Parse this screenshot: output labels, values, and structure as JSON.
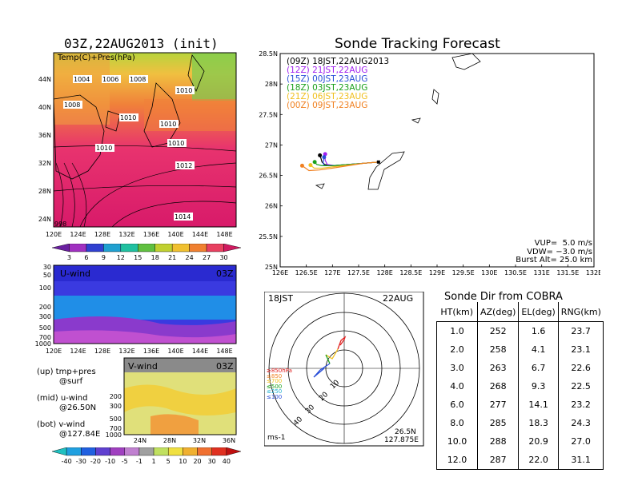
{
  "left_panel": {
    "title": "03Z,22AUG2013 (init)",
    "map_label": "Temp(C)+Pres(hPa)",
    "lat_ticks": [
      "44N",
      "40N",
      "36N",
      "32N",
      "28N",
      "24N"
    ],
    "lon_ticks": [
      "120E",
      "124E",
      "128E",
      "132E",
      "136E",
      "140E",
      "144E",
      "148E"
    ],
    "isobar_labels": [
      "1004",
      "1006",
      "1008",
      "1008",
      "1010",
      "1010",
      "1010",
      "1010",
      "1010",
      "1012",
      "1014"
    ],
    "corner_label": "998",
    "temp_colorbar": [
      "3",
      "6",
      "9",
      "12",
      "15",
      "18",
      "21",
      "24",
      "27",
      "30"
    ],
    "uwind": {
      "label": "U-wind",
      "time": "03Z",
      "p_ticks": [
        "30",
        "50",
        "100",
        "200",
        "300",
        "500",
        "700",
        "1000"
      ]
    },
    "vwind": {
      "label": "V-wind",
      "time": "03Z",
      "p_ticks": [
        "200",
        "300",
        "500",
        "700",
        "1000"
      ],
      "lat_ticks": [
        "24N",
        "28N",
        "32N",
        "36N"
      ]
    },
    "wind_colorbar": [
      "-40",
      "-30",
      "-20",
      "-10",
      "-5",
      "-1",
      "1",
      "5",
      "10",
      "20",
      "30",
      "40"
    ],
    "notes": [
      {
        "a": "(up) tmp+pres",
        "b": "@surf"
      },
      {
        "a": "(mid) u-wind",
        "b": "@26.50N"
      },
      {
        "a": "(bot) v-wind",
        "b": "@127.84E"
      }
    ],
    "colors": {
      "temp_warm": "#e8336e",
      "temp_mid": "#f0803a",
      "temp_cool": "#b8d43c",
      "uwind_bg": "#3a3ae0",
      "vwind_bg": "#e0e07a"
    }
  },
  "forecast": {
    "title": "Sonde Tracking Forecast",
    "legend": [
      {
        "z": "(09Z)",
        "time": "18JST,22AUG2013",
        "color": "#000000"
      },
      {
        "z": "(12Z)",
        "time": "21JST,22AUG",
        "color": "#a020f0"
      },
      {
        "z": "(15Z)",
        "time": "00JST,23AUG",
        "color": "#2a4fd8"
      },
      {
        "z": "(18Z)",
        "time": "03JST,23AUG",
        "color": "#1aa01a"
      },
      {
        "z": "(21Z)",
        "time": "06JST,23AUG",
        "color": "#f0c020"
      },
      {
        "z": "(00Z)",
        "time": "09JST,23AUG",
        "color": "#f08020"
      }
    ],
    "params": [
      "VUP=  5.0 m/s",
      "VDW= −3.0 m/s",
      "Burst Alt= 25.0 km"
    ]
  },
  "chart_data": [
    {
      "type": "line",
      "title": "Sonde Tracking Forecast",
      "xlim": [
        126,
        132
      ],
      "ylim": [
        25,
        28.5
      ],
      "x_ticks": [
        "126E",
        "126.5E",
        "127E",
        "127.5E",
        "128E",
        "128.5E",
        "129E",
        "129.5E",
        "130E",
        "130.5E",
        "131E",
        "131.5E",
        "132E"
      ],
      "y_ticks": [
        "25N",
        "25.5N",
        "26N",
        "26.5N",
        "27N",
        "27.5N",
        "28N",
        "28.5N"
      ],
      "series": [
        {
          "name": "(09Z) 18JST,22AUG2013",
          "color": "#000000",
          "x": [
            127.88,
            127.6,
            127.3,
            127.0,
            126.85,
            126.8,
            126.78,
            126.76
          ],
          "y": [
            26.72,
            26.7,
            26.68,
            26.66,
            26.68,
            26.72,
            26.78,
            26.83
          ]
        },
        {
          "name": "(12Z) 21JST,22AUG",
          "color": "#a020f0",
          "x": [
            127.88,
            127.6,
            127.3,
            127.05,
            126.9,
            126.86,
            126.86
          ],
          "y": [
            26.72,
            26.7,
            26.68,
            26.66,
            26.68,
            26.75,
            26.85
          ]
        },
        {
          "name": "(15Z) 00JST,23AUG",
          "color": "#2a4fd8",
          "x": [
            127.88,
            127.6,
            127.3,
            127.0,
            126.85,
            126.82,
            126.84
          ],
          "y": [
            26.72,
            26.7,
            26.68,
            26.66,
            26.66,
            26.7,
            26.8
          ]
        },
        {
          "name": "(18Z) 03JST,23AUG",
          "color": "#1aa01a",
          "x": [
            127.88,
            127.6,
            127.3,
            127.0,
            126.8,
            126.7,
            126.66
          ],
          "y": [
            26.72,
            26.7,
            26.68,
            26.66,
            26.66,
            26.68,
            26.72
          ]
        },
        {
          "name": "(21Z) 06JST,23AUG",
          "color": "#f0c020",
          "x": [
            127.88,
            127.6,
            127.3,
            127.0,
            126.8,
            126.65,
            126.58
          ],
          "y": [
            26.72,
            26.7,
            26.67,
            26.64,
            26.62,
            26.62,
            26.67
          ]
        },
        {
          "name": "(00Z) 09JST,23AUG",
          "color": "#f08020",
          "x": [
            127.88,
            127.6,
            127.3,
            127.0,
            126.75,
            126.55,
            126.42
          ],
          "y": [
            26.72,
            26.7,
            26.66,
            26.62,
            26.59,
            26.58,
            26.66
          ]
        }
      ]
    },
    {
      "type": "table",
      "title": "Sonde Dir from COBRA",
      "columns": [
        "HT(km)",
        "AZ(deg)",
        "EL(deg)",
        "RNG(km)"
      ],
      "rows": [
        [
          "1.0",
          "252",
          "1.6",
          "23.7"
        ],
        [
          "2.0",
          "258",
          "4.1",
          "23.1"
        ],
        [
          "3.0",
          "263",
          "6.7",
          "22.6"
        ],
        [
          "4.0",
          "268",
          "9.3",
          "22.5"
        ],
        [
          "6.0",
          "277",
          "14.1",
          "23.2"
        ],
        [
          "8.0",
          "285",
          "18.3",
          "24.3"
        ],
        [
          "10.0",
          "288",
          "20.9",
          "27.0"
        ],
        [
          "12.0",
          "287",
          "22.0",
          "31.1"
        ]
      ]
    }
  ],
  "hodograph": {
    "left_label": "18JST",
    "right_label": "22AUG",
    "ring_labels": [
      "10",
      "20",
      "30",
      "40"
    ],
    "level_legend": [
      {
        "text": "≥850hPa",
        "color": "#e02020"
      },
      {
        "text": "≤850",
        "color": "#f08020"
      },
      {
        "text": "≤700",
        "color": "#f0c020"
      },
      {
        "text": "≤500",
        "color": "#1aa01a"
      },
      {
        "text": "≤250",
        "color": "#20b0d0"
      },
      {
        "text": "≤100",
        "color": "#2a4fd8"
      }
    ],
    "unit": "ms-1",
    "loc_lat": "26.5N",
    "loc_lon": "127.875E"
  }
}
